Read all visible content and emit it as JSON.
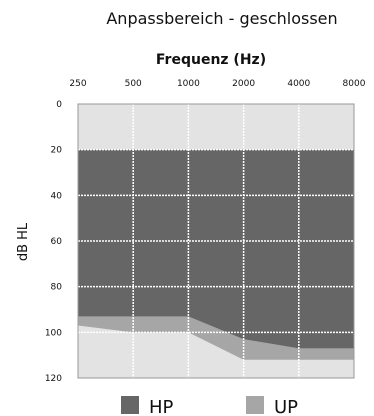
{
  "chart_data": {
    "type": "area",
    "title": "Anpassbereich - geschlossen",
    "xlabel": "Frequenz (Hz)",
    "ylabel": "dB HL",
    "x_ticks": [
      "250",
      "500",
      "1000",
      "2000",
      "4000",
      "8000"
    ],
    "y_ticks": [
      "0",
      "20",
      "40",
      "60",
      "80",
      "100",
      "120"
    ],
    "ylim": [
      0,
      120
    ],
    "y_inverted": true,
    "grid": true,
    "legend_position": "bottom",
    "series": [
      {
        "name": "HP",
        "color": "#666666",
        "x": [
          "250",
          "500",
          "1000",
          "2000",
          "4000",
          "8000"
        ],
        "lower": [
          20,
          20,
          20,
          20,
          20,
          20
        ],
        "upper": [
          93,
          93,
          93,
          103,
          107,
          107
        ]
      },
      {
        "name": "UP",
        "color": "#a6a6a6",
        "x": [
          "250",
          "500",
          "1000",
          "2000",
          "4000",
          "8000"
        ],
        "lower": [
          87,
          90,
          90,
          103,
          107,
          107
        ],
        "upper": [
          97,
          100,
          100,
          112,
          112,
          112
        ]
      }
    ],
    "colors": {
      "background": "#e3e3e3",
      "grid": "#ffffff"
    }
  }
}
